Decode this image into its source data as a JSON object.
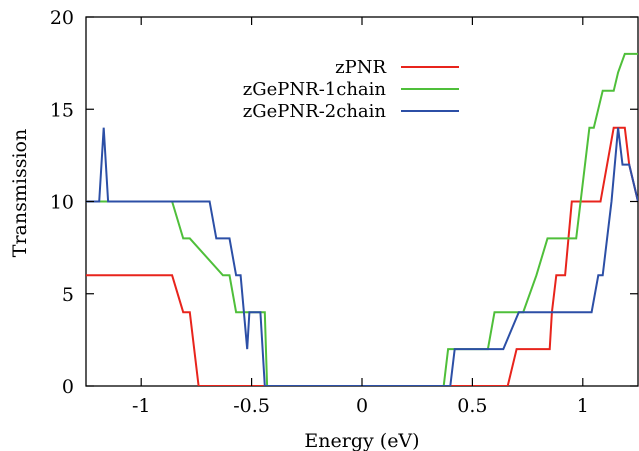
{
  "chart_data": {
    "type": "line",
    "title": "",
    "xlabel": "Energy (eV)",
    "ylabel": "Transmission",
    "xlim": [
      -1.25,
      1.25
    ],
    "ylim": [
      0,
      20
    ],
    "xticks": [
      -1,
      -0.5,
      0,
      0.5,
      1
    ],
    "xtick_labels": [
      "-1",
      "-0.5",
      "0",
      "0.5",
      "1"
    ],
    "yticks": [
      0,
      5,
      10,
      15,
      20
    ],
    "ytick_labels": [
      "0",
      "5",
      "10",
      "15",
      "20"
    ],
    "grid": false,
    "legend_position": "top-center",
    "series": [
      {
        "name": "zPNR",
        "color": "#e8241c",
        "x": [
          -1.25,
          -0.89,
          -0.88,
          -0.86,
          -0.81,
          -0.8,
          -0.78,
          -0.74,
          0.65,
          0.66,
          0.7,
          0.85,
          0.86,
          0.88,
          0.9,
          0.92,
          0.95,
          1.0,
          1.08,
          1.14,
          1.15,
          1.19,
          1.21,
          1.25
        ],
        "y": [
          6,
          6,
          6,
          6,
          4,
          4,
          4,
          0,
          0,
          0,
          2,
          2,
          4,
          6,
          6,
          6,
          10,
          10,
          10,
          14,
          14,
          14,
          12,
          10
        ]
      },
      {
        "name": "zGePNR-1chain",
        "color": "#4fbf3a",
        "x": [
          -1.25,
          -0.89,
          -0.86,
          -0.81,
          -0.8,
          -0.78,
          -0.63,
          -0.6,
          -0.57,
          -0.46,
          -0.44,
          -0.43,
          0.37,
          0.39,
          0.57,
          0.6,
          0.73,
          0.79,
          0.84,
          0.97,
          1.03,
          1.05,
          1.09,
          1.14,
          1.16,
          1.19,
          1.25
        ],
        "y": [
          10,
          10,
          10,
          8,
          8,
          8,
          6,
          6,
          4,
          4,
          4,
          0,
          0,
          2,
          2,
          4,
          4,
          6,
          8,
          8,
          14,
          14,
          16,
          16,
          17,
          18,
          18
        ]
      },
      {
        "name": "zGePNR-2chain",
        "color": "#2c4fa6",
        "x": [
          -1.25,
          -1.19,
          -1.17,
          -1.15,
          -0.69,
          -0.66,
          -0.6,
          -0.57,
          -0.55,
          -0.52,
          -0.51,
          -0.48,
          -0.46,
          -0.44,
          0.4,
          0.42,
          0.61,
          0.64,
          0.71,
          0.74,
          0.91,
          0.92,
          1.04,
          1.07,
          1.09,
          1.13,
          1.16,
          1.18,
          1.21,
          1.25
        ],
        "y": [
          10,
          10,
          14,
          10,
          10,
          8,
          8,
          6,
          6,
          2,
          4,
          4,
          4,
          0,
          0,
          2,
          2,
          2,
          4,
          4,
          4,
          4,
          4,
          6,
          6,
          10,
          14,
          12,
          12,
          10
        ]
      }
    ]
  }
}
